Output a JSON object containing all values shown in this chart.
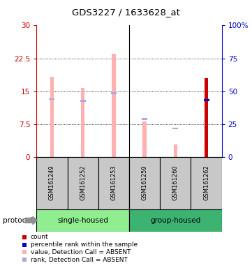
{
  "title": "GDS3227 / 1633628_at",
  "samples": [
    "GSM161249",
    "GSM161252",
    "GSM161253",
    "GSM161259",
    "GSM161260",
    "GSM161262"
  ],
  "value_absent": [
    18.2,
    15.8,
    23.5,
    8.0,
    2.8,
    18.0
  ],
  "rank_absent": [
    13.2,
    12.8,
    14.5,
    8.6,
    6.5,
    13.2
  ],
  "count_present": [
    null,
    null,
    null,
    null,
    null,
    18.0
  ],
  "rank_present_pct": [
    null,
    null,
    null,
    null,
    null,
    43.0
  ],
  "ylim_left": [
    0,
    30
  ],
  "ylim_right": [
    0,
    100
  ],
  "yticks_left": [
    0,
    7.5,
    15,
    22.5,
    30
  ],
  "yticks_right": [
    0,
    25,
    50,
    75,
    100
  ],
  "ytick_labels_left": [
    "0",
    "7.5",
    "15",
    "22.5",
    "30"
  ],
  "ytick_labels_right": [
    "0",
    "25",
    "50",
    "75",
    "100%"
  ],
  "left_axis_color": "#CC0000",
  "right_axis_color": "#0000CC",
  "value_absent_color": "#FFB0B0",
  "rank_absent_color": "#AAAADD",
  "count_present_color": "#CC0000",
  "rank_present_color": "#0000CC",
  "single_housed_color": "#90EE90",
  "group_housed_color": "#3CB371",
  "label_bg_color": "#C8C8C8"
}
